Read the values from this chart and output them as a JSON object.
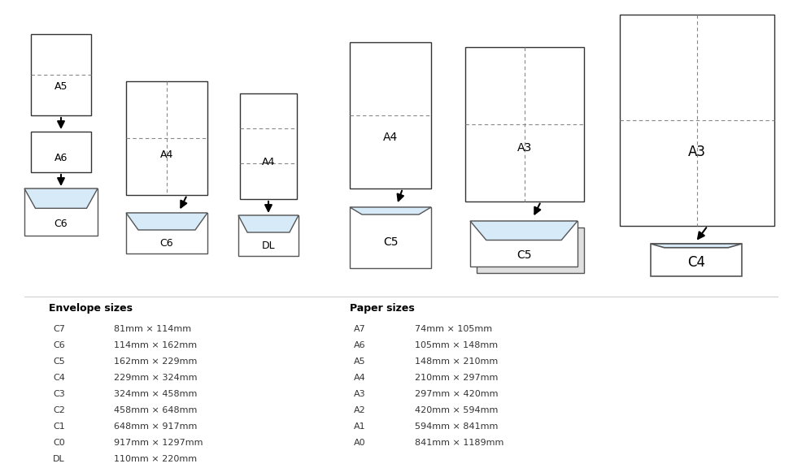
{
  "bg_color": "#ffffff",
  "envelope_color": "#d6eaf8",
  "envelope_edge": "#555555",
  "paper_color": "#ffffff",
  "paper_edge": "#333333",
  "dashed_color": "#888888",
  "envelope_sizes": {
    "C7": "81mm × 114mm",
    "C6": "114mm × 162mm",
    "C5": "162mm × 229mm",
    "C4": "229mm × 324mm",
    "C3": "324mm × 458mm",
    "C2": "458mm × 648mm",
    "C1": "648mm × 917mm",
    "C0": "917mm × 1297mm",
    "DL": "110mm × 220mm"
  },
  "paper_sizes": {
    "A7": "74mm × 105mm",
    "A6": "105mm × 148mm",
    "A5": "148mm × 210mm",
    "A4": "210mm × 297mm",
    "A3": "297mm × 420mm",
    "A2": "420mm × 594mm",
    "A1": "594mm × 841mm",
    "A0": "841mm × 1189mm"
  }
}
